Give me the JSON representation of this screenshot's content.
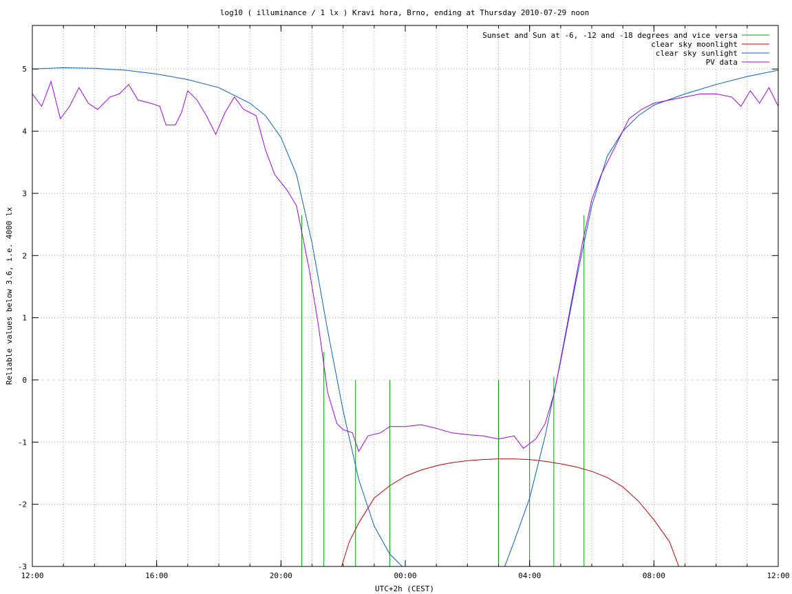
{
  "chart_data": {
    "type": "line",
    "title": "log10 ( illuminance / 1 lx ) Kravi hora, Brno, ending at Thursday 2010-07-29 noon",
    "xlabel": "UTC+2h (CEST)",
    "ylabel": "Reliable values below 3.6, i.e. 4000 lx",
    "x_unit": "hours",
    "xlim": [
      12,
      36
    ],
    "ylim": [
      -3,
      5.7
    ],
    "x_major_ticks": [
      {
        "value": 12,
        "label": "12:00"
      },
      {
        "value": 16,
        "label": "16:00"
      },
      {
        "value": 20,
        "label": "20:00"
      },
      {
        "value": 24,
        "label": "00:00"
      },
      {
        "value": 28,
        "label": "04:00"
      },
      {
        "value": 32,
        "label": "08:00"
      },
      {
        "value": 36,
        "label": "12:00"
      }
    ],
    "x_grid_step": 1,
    "y_ticks": [
      {
        "value": -3,
        "label": "-3"
      },
      {
        "value": -2,
        "label": "-2"
      },
      {
        "value": -1,
        "label": "-1"
      },
      {
        "value": 0,
        "label": "0"
      },
      {
        "value": 1,
        "label": "1"
      },
      {
        "value": 2,
        "label": "2"
      },
      {
        "value": 3,
        "label": "3"
      },
      {
        "value": 4,
        "label": "4"
      },
      {
        "value": 5,
        "label": "5"
      }
    ],
    "grid": true,
    "legend_position": "top-right",
    "series": [
      {
        "name": "Sunset and Sun at -6, -12 and -18 degrees and vice versa",
        "color": "#00a000",
        "kind": "vertical-markers",
        "markers": [
          {
            "x": 20.67,
            "y_top": 2.65
          },
          {
            "x": 21.38,
            "y_top": 0.45
          },
          {
            "x": 22.4,
            "y_top": 0
          },
          {
            "x": 23.5,
            "y_top": 0
          },
          {
            "x": 27.0,
            "y_top": 0
          },
          {
            "x": 28.0,
            "y_top": 0
          },
          {
            "x": 28.78,
            "y_top": 0.05
          },
          {
            "x": 29.75,
            "y_top": 2.65
          }
        ],
        "y_bottom": -3
      },
      {
        "name": "clear sky moonlight",
        "color": "#c00000",
        "points": [
          [
            21.95,
            -3
          ],
          [
            22.2,
            -2.6
          ],
          [
            22.5,
            -2.3
          ],
          [
            23.0,
            -1.9
          ],
          [
            23.5,
            -1.7
          ],
          [
            24.0,
            -1.55
          ],
          [
            24.5,
            -1.45
          ],
          [
            25.0,
            -1.38
          ],
          [
            25.5,
            -1.33
          ],
          [
            26.0,
            -1.3
          ],
          [
            26.5,
            -1.28
          ],
          [
            27.0,
            -1.27
          ],
          [
            27.5,
            -1.27
          ],
          [
            28.0,
            -1.28
          ],
          [
            28.5,
            -1.31
          ],
          [
            29.0,
            -1.35
          ],
          [
            29.5,
            -1.4
          ],
          [
            30.0,
            -1.47
          ],
          [
            30.5,
            -1.57
          ],
          [
            31.0,
            -1.72
          ],
          [
            31.5,
            -1.95
          ],
          [
            32.0,
            -2.25
          ],
          [
            32.5,
            -2.6
          ],
          [
            32.8,
            -3
          ]
        ]
      },
      {
        "name": "clear sky sunlight",
        "color": "#0060c0",
        "points": [
          [
            12,
            5.0
          ],
          [
            13,
            5.02
          ],
          [
            14,
            5.01
          ],
          [
            15,
            4.98
          ],
          [
            16,
            4.92
          ],
          [
            17,
            4.83
          ],
          [
            18,
            4.7
          ],
          [
            19,
            4.45
          ],
          [
            19.5,
            4.25
          ],
          [
            20,
            3.9
          ],
          [
            20.5,
            3.3
          ],
          [
            21,
            2.2
          ],
          [
            21.5,
            0.8
          ],
          [
            22,
            -0.5
          ],
          [
            22.5,
            -1.6
          ],
          [
            23,
            -2.35
          ],
          [
            23.5,
            -2.8
          ],
          [
            23.9,
            -3
          ],
          [
            27.2,
            -3
          ],
          [
            27.5,
            -2.6
          ],
          [
            28,
            -1.9
          ],
          [
            28.5,
            -0.9
          ],
          [
            29,
            0.3
          ],
          [
            29.5,
            1.6
          ],
          [
            30,
            2.8
          ],
          [
            30.5,
            3.6
          ],
          [
            31,
            4.0
          ],
          [
            31.5,
            4.25
          ],
          [
            32,
            4.42
          ],
          [
            33,
            4.6
          ],
          [
            34,
            4.75
          ],
          [
            35,
            4.88
          ],
          [
            36,
            4.98
          ]
        ]
      },
      {
        "name": "PV data",
        "color": "#a000e0",
        "points": [
          [
            12,
            4.6
          ],
          [
            12.3,
            4.4
          ],
          [
            12.6,
            4.8
          ],
          [
            12.9,
            4.2
          ],
          [
            13.2,
            4.4
          ],
          [
            13.5,
            4.7
          ],
          [
            13.8,
            4.45
          ],
          [
            14.1,
            4.35
          ],
          [
            14.5,
            4.55
          ],
          [
            14.8,
            4.6
          ],
          [
            15.1,
            4.75
          ],
          [
            15.4,
            4.5
          ],
          [
            15.8,
            4.45
          ],
          [
            16.1,
            4.4
          ],
          [
            16.3,
            4.1
          ],
          [
            16.6,
            4.1
          ],
          [
            16.8,
            4.3
          ],
          [
            17.0,
            4.65
          ],
          [
            17.3,
            4.5
          ],
          [
            17.6,
            4.25
          ],
          [
            17.9,
            3.95
          ],
          [
            18.2,
            4.3
          ],
          [
            18.5,
            4.55
          ],
          [
            18.8,
            4.35
          ],
          [
            19.2,
            4.25
          ],
          [
            19.5,
            3.7
          ],
          [
            19.8,
            3.3
          ],
          [
            20.2,
            3.05
          ],
          [
            20.5,
            2.8
          ],
          [
            20.9,
            1.8
          ],
          [
            21.2,
            0.9
          ],
          [
            21.5,
            -0.2
          ],
          [
            21.8,
            -0.7
          ],
          [
            22.0,
            -0.8
          ],
          [
            22.3,
            -0.85
          ],
          [
            22.5,
            -1.15
          ],
          [
            22.8,
            -0.9
          ],
          [
            23.2,
            -0.85
          ],
          [
            23.5,
            -0.75
          ],
          [
            24.0,
            -0.75
          ],
          [
            24.5,
            -0.72
          ],
          [
            25.0,
            -0.78
          ],
          [
            25.5,
            -0.85
          ],
          [
            26.0,
            -0.88
          ],
          [
            26.5,
            -0.9
          ],
          [
            27.0,
            -0.95
          ],
          [
            27.5,
            -0.9
          ],
          [
            27.8,
            -1.1
          ],
          [
            28.2,
            -0.95
          ],
          [
            28.5,
            -0.7
          ],
          [
            28.8,
            -0.2
          ],
          [
            29.1,
            0.6
          ],
          [
            29.4,
            1.4
          ],
          [
            29.7,
            2.2
          ],
          [
            30.0,
            2.9
          ],
          [
            30.3,
            3.3
          ],
          [
            30.6,
            3.6
          ],
          [
            30.9,
            3.9
          ],
          [
            31.2,
            4.2
          ],
          [
            31.6,
            4.35
          ],
          [
            32,
            4.45
          ],
          [
            32.5,
            4.5
          ],
          [
            33,
            4.55
          ],
          [
            33.5,
            4.6
          ],
          [
            34,
            4.6
          ],
          [
            34.5,
            4.55
          ],
          [
            34.8,
            4.4
          ],
          [
            35.1,
            4.65
          ],
          [
            35.4,
            4.45
          ],
          [
            35.7,
            4.7
          ],
          [
            36,
            4.4
          ]
        ]
      }
    ]
  }
}
